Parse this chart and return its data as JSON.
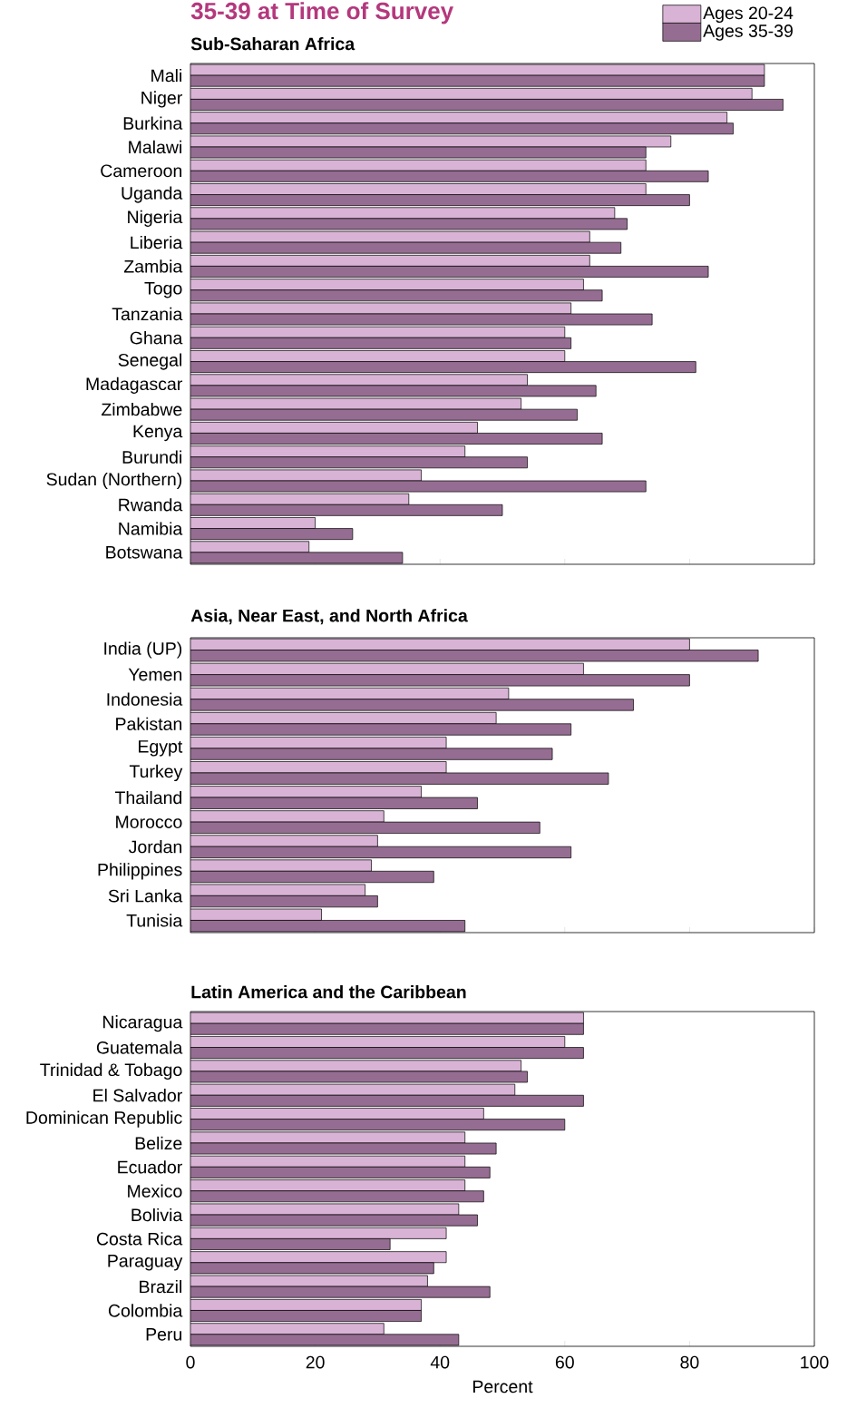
{
  "chart_data": [
    {
      "type": "bar",
      "orientation": "horizontal",
      "title": "35-39 at Time of Survey",
      "subtitle": "Sub-Saharan Africa",
      "categories": [
        "Mali",
        "Niger",
        "Burkina",
        "Malawi",
        "Cameroon",
        "Uganda",
        "Nigeria",
        "Liberia",
        "Zambia",
        "Togo",
        "Tanzania",
        "Ghana",
        "Senegal",
        "Madagascar",
        "Zimbabwe",
        "Kenya",
        "Burundi",
        "Sudan (Northern)",
        "Rwanda",
        "Namibia",
        "Botswana"
      ],
      "series": [
        {
          "name": "Ages 20-24",
          "color": "#d9b3d6",
          "values": [
            92,
            90,
            86,
            77,
            73,
            73,
            68,
            64,
            64,
            63,
            61,
            60,
            60,
            54,
            53,
            46,
            44,
            37,
            35,
            20,
            19
          ]
        },
        {
          "name": "Ages 35-39",
          "color": "#966d92",
          "values": [
            92,
            95,
            87,
            73,
            83,
            80,
            70,
            69,
            83,
            66,
            74,
            61,
            81,
            65,
            62,
            66,
            54,
            73,
            50,
            26,
            34
          ]
        }
      ],
      "xlim": [
        0,
        100
      ],
      "xticks": [
        0,
        20,
        40,
        60,
        80,
        100
      ],
      "tick_labels": "y",
      "legend": "top right",
      "grid": false
    },
    {
      "type": "bar",
      "orientation": "horizontal",
      "title": "Asia, Near East, and North Africa",
      "categories": [
        "India (UP)",
        "Yemen",
        "Indonesia",
        "Pakistan",
        "Egypt",
        "Turkey",
        "Thailand",
        "Morocco",
        "Jordan",
        "Philippines",
        "Sri Lanka",
        "Tunisia"
      ],
      "series": [
        {
          "color": "#d9b3d6",
          "values": [
            80,
            63,
            51,
            49,
            41,
            41,
            37,
            31,
            30,
            29,
            28,
            21
          ]
        },
        {
          "color": "#966d92",
          "values": [
            91,
            80,
            71,
            61,
            58,
            67,
            46,
            56,
            61,
            39,
            30,
            44
          ]
        }
      ],
      "xlim": [
        0,
        100
      ],
      "xticks": [
        0,
        20,
        40,
        60,
        80,
        100
      ],
      "tick_labels": "y",
      "grid": false
    },
    {
      "type": "bar",
      "orientation": "horizontal",
      "title": "Latin America and the Caribbean",
      "xlabel": "Percent",
      "categories": [
        "Nicaragua",
        "Guatemala",
        "Trinidad & Tobago",
        "El Salvador",
        "Dominican Republic",
        "Belize",
        "Ecuador",
        "Mexico",
        "Bolivia",
        "Costa Rica",
        "Paraguay",
        "Brazil",
        "Colombia",
        "Peru"
      ],
      "series": [
        {
          "color": "#d9b3d6",
          "values": [
            63,
            60,
            53,
            52,
            47,
            44,
            44,
            44,
            43,
            41,
            41,
            38,
            37,
            31
          ]
        },
        {
          "color": "#966d92",
          "values": [
            63,
            63,
            54,
            63,
            60,
            49,
            48,
            47,
            46,
            32,
            39,
            48,
            37,
            43
          ]
        }
      ],
      "xlim": [
        0,
        100
      ],
      "xticks": [
        0,
        20,
        40,
        60,
        80,
        100
      ],
      "grid": false
    }
  ]
}
